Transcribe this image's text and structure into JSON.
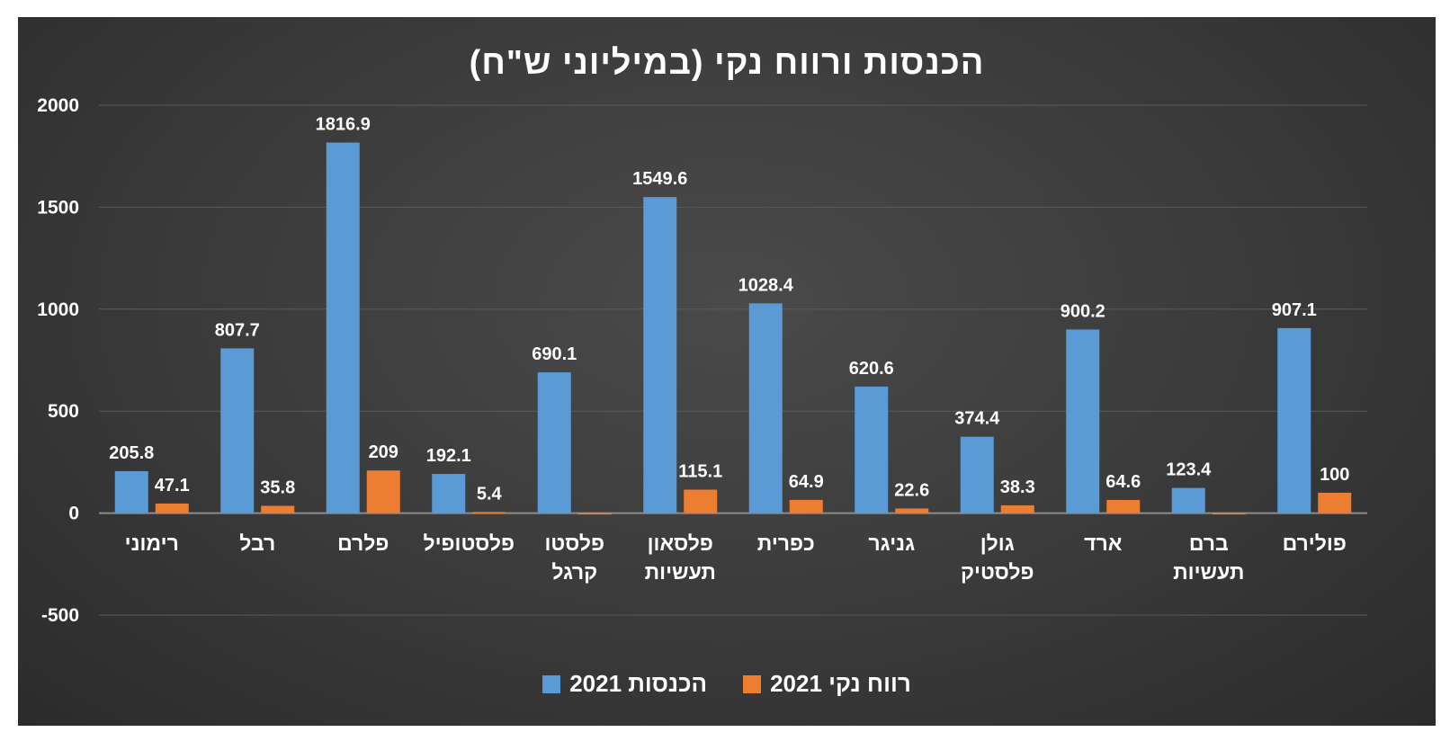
{
  "colors": {
    "series_1": "#5b9bd5",
    "series_2": "#ed7d31",
    "background": "#3a3a3a",
    "grid": "#5a5a5a",
    "text": "#ffffff"
  },
  "chart_data": {
    "type": "bar",
    "title": "הכנסות ורווח נקי (במיליוני ש\"ח)",
    "categories": [
      "רימוני",
      "רבל",
      "פלרם",
      "פלסטופיל",
      "פלסטו\nקרגל",
      "פלסאון\nתעשיות",
      "כפרית",
      "גניגר",
      "גולן\nפלסטיק",
      "ארד",
      "ברם\nתעשיות",
      "פולירם"
    ],
    "series": [
      {
        "name": "הכנסות 2021",
        "values": [
          205.8,
          807.7,
          1816.9,
          192.1,
          690.1,
          1549.6,
          1028.4,
          620.6,
          374.4,
          900.2,
          123.4,
          907.1
        ],
        "labels": [
          "205.8",
          "807.7",
          "1816.9",
          "192.1",
          "690.1",
          "1549.6",
          "1028.4",
          "620.6",
          "374.4",
          "900.2",
          "123.4",
          "907.1"
        ]
      },
      {
        "name": "רווח נקי 2021",
        "values": [
          47.1,
          35.8,
          209,
          5.4,
          0,
          115.1,
          64.9,
          22.6,
          38.3,
          64.6,
          0,
          100
        ],
        "labels": [
          "47.1",
          "35.8",
          "209",
          "5.4",
          "",
          "115.1",
          "64.9",
          "22.6",
          "38.3",
          "64.6",
          "",
          "100"
        ]
      }
    ],
    "ylim": [
      -500,
      2000
    ],
    "yticks": [
      "2000",
      "1500",
      "1000",
      "500",
      "0",
      "-500"
    ],
    "grid": true,
    "legend_position": "bottom"
  }
}
